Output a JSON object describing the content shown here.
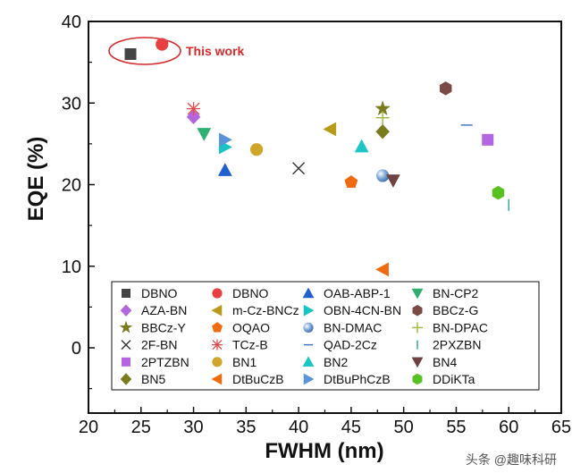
{
  "chart_data": {
    "type": "scatter",
    "xlabel": "FWHM (nm)",
    "ylabel": "EQE (%)",
    "xlim": [
      20,
      65
    ],
    "ylim": [
      -8,
      40
    ],
    "xticks": [
      "20",
      "25",
      "30",
      "35",
      "40",
      "45",
      "50",
      "55",
      "60",
      "65"
    ],
    "yticks": [
      "0",
      "10",
      "20",
      "30",
      "40"
    ],
    "grid": false,
    "legend_position": "bottom-inside",
    "annotation": {
      "text": "This work",
      "color": "#d42a2a"
    },
    "series": [
      {
        "name": "DBNO",
        "marker": "square",
        "color": "#444444",
        "points": [
          [
            24,
            36
          ]
        ]
      },
      {
        "name": "DBNO",
        "marker": "circle",
        "color": "#e84040",
        "points": [
          [
            27,
            37.2
          ]
        ]
      },
      {
        "name": "OAB-ABP-1",
        "marker": "triangle-up",
        "color": "#1f5fd0",
        "points": [
          [
            33,
            21.8
          ]
        ]
      },
      {
        "name": "BN-CP2",
        "marker": "triangle-down",
        "color": "#2fb070",
        "points": [
          [
            31,
            26.2
          ]
        ]
      },
      {
        "name": "AZA-BN",
        "marker": "diamond",
        "color": "#b366e0",
        "points": [
          [
            30,
            28.3
          ]
        ]
      },
      {
        "name": "m-Cz-BNCz",
        "marker": "triangle-left",
        "color": "#b89a1a",
        "points": [
          [
            43,
            26.8
          ]
        ]
      },
      {
        "name": "OBN-4CN-BN",
        "marker": "triangle-right",
        "color": "#19c4c4",
        "points": [
          [
            33,
            24.6
          ]
        ]
      },
      {
        "name": "BBCz-G",
        "marker": "hexagon",
        "color": "#7a4a44",
        "points": [
          [
            54,
            31.8
          ]
        ]
      },
      {
        "name": "BBCz-Y",
        "marker": "star",
        "color": "#7b7b1e",
        "points": [
          [
            48,
            29.3
          ]
        ]
      },
      {
        "name": "OQAO",
        "marker": "pentagon",
        "color": "#f06a10",
        "points": [
          [
            45,
            20.3
          ]
        ]
      },
      {
        "name": "BN-DMAC",
        "marker": "sphere",
        "color": "#5a8cc8",
        "points": [
          [
            48,
            21.1
          ]
        ]
      },
      {
        "name": "BN-DPAC",
        "marker": "plus",
        "color": "#9bb83a",
        "points": [
          [
            48,
            28.2
          ]
        ]
      },
      {
        "name": "2F-BN",
        "marker": "x",
        "color": "#333333",
        "points": [
          [
            40,
            22
          ]
        ]
      },
      {
        "name": "TCz-B",
        "marker": "asterisk",
        "color": "#e04a4a",
        "points": [
          [
            30,
            29.3
          ]
        ]
      },
      {
        "name": "QAD-2Cz",
        "marker": "hline",
        "color": "#3a6fc0",
        "points": [
          [
            56,
            27.3
          ]
        ]
      },
      {
        "name": "2PXZBN",
        "marker": "vline",
        "color": "#27a0a0",
        "points": [
          [
            60,
            17.5
          ]
        ]
      },
      {
        "name": "2PTZBN",
        "marker": "square",
        "color": "#b366e0",
        "points": [
          [
            58,
            25.5
          ]
        ]
      },
      {
        "name": "BN1",
        "marker": "circle",
        "color": "#d0a62a",
        "points": [
          [
            36,
            24.3
          ]
        ]
      },
      {
        "name": "BN2",
        "marker": "triangle-up",
        "color": "#1dc6c6",
        "points": [
          [
            46,
            24.7
          ]
        ]
      },
      {
        "name": "BN4",
        "marker": "triangle-down",
        "color": "#6e4242",
        "points": [
          [
            49,
            20.5
          ]
        ]
      },
      {
        "name": "BN5",
        "marker": "diamond",
        "color": "#7b7b1e",
        "points": [
          [
            48,
            26.5
          ]
        ]
      },
      {
        "name": "DtBuCzB",
        "marker": "triangle-left",
        "color": "#f06a10",
        "points": [
          [
            48,
            9.6
          ]
        ]
      },
      {
        "name": "DtBuPhCzB",
        "marker": "triangle-right",
        "color": "#5a94d8",
        "points": [
          [
            33,
            25.5
          ]
        ]
      },
      {
        "name": "DDiKTa",
        "marker": "hexagon",
        "color": "#58c020",
        "points": [
          [
            59,
            19
          ]
        ]
      }
    ]
  },
  "watermark": "头条 @趣味科研"
}
